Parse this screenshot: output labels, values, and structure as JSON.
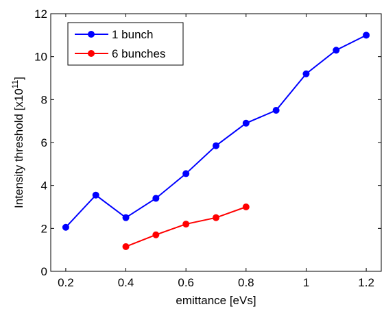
{
  "chart_data": {
    "type": "line",
    "xlabel": "emittance [eVs]",
    "ylabel_main": "Intensity threshold [x10",
    "ylabel_exp": "11",
    "ylabel_close": "]",
    "xlim": [
      0.15,
      1.25
    ],
    "ylim": [
      0,
      12
    ],
    "xticks": [
      0.2,
      0.4,
      0.6,
      0.8,
      1.0,
      1.2
    ],
    "xtick_labels": [
      "0.2",
      "0.4",
      "0.6",
      "0.8",
      "1",
      "1.2"
    ],
    "yticks": [
      0,
      2,
      4,
      6,
      8,
      10,
      12
    ],
    "ytick_labels": [
      "0",
      "2",
      "4",
      "6",
      "8",
      "10",
      "12"
    ],
    "grid": false,
    "legend_position": "top-left",
    "series": [
      {
        "name": "1 bunch",
        "color": "#0000ff",
        "marker": "circle",
        "x": [
          0.2,
          0.3,
          0.4,
          0.5,
          0.6,
          0.7,
          0.8,
          0.9,
          1.0,
          1.1,
          1.2
        ],
        "y": [
          2.05,
          3.55,
          2.5,
          3.4,
          4.55,
          5.85,
          6.9,
          7.5,
          9.2,
          10.3,
          11.0
        ]
      },
      {
        "name": "6 bunches",
        "color": "#ff0000",
        "marker": "circle",
        "x": [
          0.4,
          0.5,
          0.6,
          0.7,
          0.8
        ],
        "y": [
          1.15,
          1.7,
          2.2,
          2.5,
          3.0
        ]
      }
    ]
  }
}
